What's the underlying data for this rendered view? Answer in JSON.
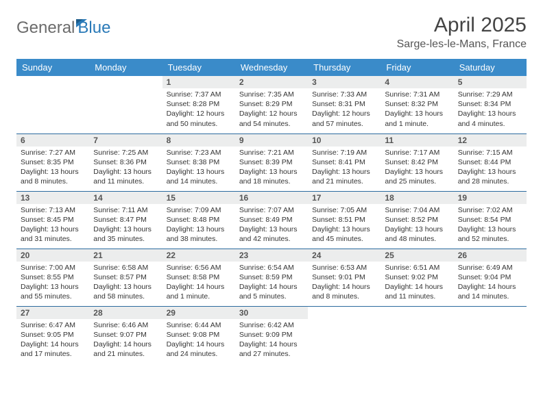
{
  "brand": {
    "word1": "General",
    "word2": "Blue"
  },
  "title": "April 2025",
  "location": "Sarge-les-le-Mans, France",
  "daysOfWeek": [
    "Sunday",
    "Monday",
    "Tuesday",
    "Wednesday",
    "Thursday",
    "Friday",
    "Saturday"
  ],
  "colors": {
    "header_bg": "#3a8bc9",
    "header_border": "#2a6a9e",
    "daynum_bg": "#eceded",
    "logo_gray": "#6b6b6b",
    "logo_blue": "#2a7ab8"
  },
  "weeks": [
    [
      null,
      null,
      {
        "n": "1",
        "sr": "Sunrise: 7:37 AM",
        "ss": "Sunset: 8:28 PM",
        "dl": "Daylight: 12 hours and 50 minutes."
      },
      {
        "n": "2",
        "sr": "Sunrise: 7:35 AM",
        "ss": "Sunset: 8:29 PM",
        "dl": "Daylight: 12 hours and 54 minutes."
      },
      {
        "n": "3",
        "sr": "Sunrise: 7:33 AM",
        "ss": "Sunset: 8:31 PM",
        "dl": "Daylight: 12 hours and 57 minutes."
      },
      {
        "n": "4",
        "sr": "Sunrise: 7:31 AM",
        "ss": "Sunset: 8:32 PM",
        "dl": "Daylight: 13 hours and 1 minute."
      },
      {
        "n": "5",
        "sr": "Sunrise: 7:29 AM",
        "ss": "Sunset: 8:34 PM",
        "dl": "Daylight: 13 hours and 4 minutes."
      }
    ],
    [
      {
        "n": "6",
        "sr": "Sunrise: 7:27 AM",
        "ss": "Sunset: 8:35 PM",
        "dl": "Daylight: 13 hours and 8 minutes."
      },
      {
        "n": "7",
        "sr": "Sunrise: 7:25 AM",
        "ss": "Sunset: 8:36 PM",
        "dl": "Daylight: 13 hours and 11 minutes."
      },
      {
        "n": "8",
        "sr": "Sunrise: 7:23 AM",
        "ss": "Sunset: 8:38 PM",
        "dl": "Daylight: 13 hours and 14 minutes."
      },
      {
        "n": "9",
        "sr": "Sunrise: 7:21 AM",
        "ss": "Sunset: 8:39 PM",
        "dl": "Daylight: 13 hours and 18 minutes."
      },
      {
        "n": "10",
        "sr": "Sunrise: 7:19 AM",
        "ss": "Sunset: 8:41 PM",
        "dl": "Daylight: 13 hours and 21 minutes."
      },
      {
        "n": "11",
        "sr": "Sunrise: 7:17 AM",
        "ss": "Sunset: 8:42 PM",
        "dl": "Daylight: 13 hours and 25 minutes."
      },
      {
        "n": "12",
        "sr": "Sunrise: 7:15 AM",
        "ss": "Sunset: 8:44 PM",
        "dl": "Daylight: 13 hours and 28 minutes."
      }
    ],
    [
      {
        "n": "13",
        "sr": "Sunrise: 7:13 AM",
        "ss": "Sunset: 8:45 PM",
        "dl": "Daylight: 13 hours and 31 minutes."
      },
      {
        "n": "14",
        "sr": "Sunrise: 7:11 AM",
        "ss": "Sunset: 8:47 PM",
        "dl": "Daylight: 13 hours and 35 minutes."
      },
      {
        "n": "15",
        "sr": "Sunrise: 7:09 AM",
        "ss": "Sunset: 8:48 PM",
        "dl": "Daylight: 13 hours and 38 minutes."
      },
      {
        "n": "16",
        "sr": "Sunrise: 7:07 AM",
        "ss": "Sunset: 8:49 PM",
        "dl": "Daylight: 13 hours and 42 minutes."
      },
      {
        "n": "17",
        "sr": "Sunrise: 7:05 AM",
        "ss": "Sunset: 8:51 PM",
        "dl": "Daylight: 13 hours and 45 minutes."
      },
      {
        "n": "18",
        "sr": "Sunrise: 7:04 AM",
        "ss": "Sunset: 8:52 PM",
        "dl": "Daylight: 13 hours and 48 minutes."
      },
      {
        "n": "19",
        "sr": "Sunrise: 7:02 AM",
        "ss": "Sunset: 8:54 PM",
        "dl": "Daylight: 13 hours and 52 minutes."
      }
    ],
    [
      {
        "n": "20",
        "sr": "Sunrise: 7:00 AM",
        "ss": "Sunset: 8:55 PM",
        "dl": "Daylight: 13 hours and 55 minutes."
      },
      {
        "n": "21",
        "sr": "Sunrise: 6:58 AM",
        "ss": "Sunset: 8:57 PM",
        "dl": "Daylight: 13 hours and 58 minutes."
      },
      {
        "n": "22",
        "sr": "Sunrise: 6:56 AM",
        "ss": "Sunset: 8:58 PM",
        "dl": "Daylight: 14 hours and 1 minute."
      },
      {
        "n": "23",
        "sr": "Sunrise: 6:54 AM",
        "ss": "Sunset: 8:59 PM",
        "dl": "Daylight: 14 hours and 5 minutes."
      },
      {
        "n": "24",
        "sr": "Sunrise: 6:53 AM",
        "ss": "Sunset: 9:01 PM",
        "dl": "Daylight: 14 hours and 8 minutes."
      },
      {
        "n": "25",
        "sr": "Sunrise: 6:51 AM",
        "ss": "Sunset: 9:02 PM",
        "dl": "Daylight: 14 hours and 11 minutes."
      },
      {
        "n": "26",
        "sr": "Sunrise: 6:49 AM",
        "ss": "Sunset: 9:04 PM",
        "dl": "Daylight: 14 hours and 14 minutes."
      }
    ],
    [
      {
        "n": "27",
        "sr": "Sunrise: 6:47 AM",
        "ss": "Sunset: 9:05 PM",
        "dl": "Daylight: 14 hours and 17 minutes."
      },
      {
        "n": "28",
        "sr": "Sunrise: 6:46 AM",
        "ss": "Sunset: 9:07 PM",
        "dl": "Daylight: 14 hours and 21 minutes."
      },
      {
        "n": "29",
        "sr": "Sunrise: 6:44 AM",
        "ss": "Sunset: 9:08 PM",
        "dl": "Daylight: 14 hours and 24 minutes."
      },
      {
        "n": "30",
        "sr": "Sunrise: 6:42 AM",
        "ss": "Sunset: 9:09 PM",
        "dl": "Daylight: 14 hours and 27 minutes."
      },
      null,
      null,
      null
    ]
  ]
}
